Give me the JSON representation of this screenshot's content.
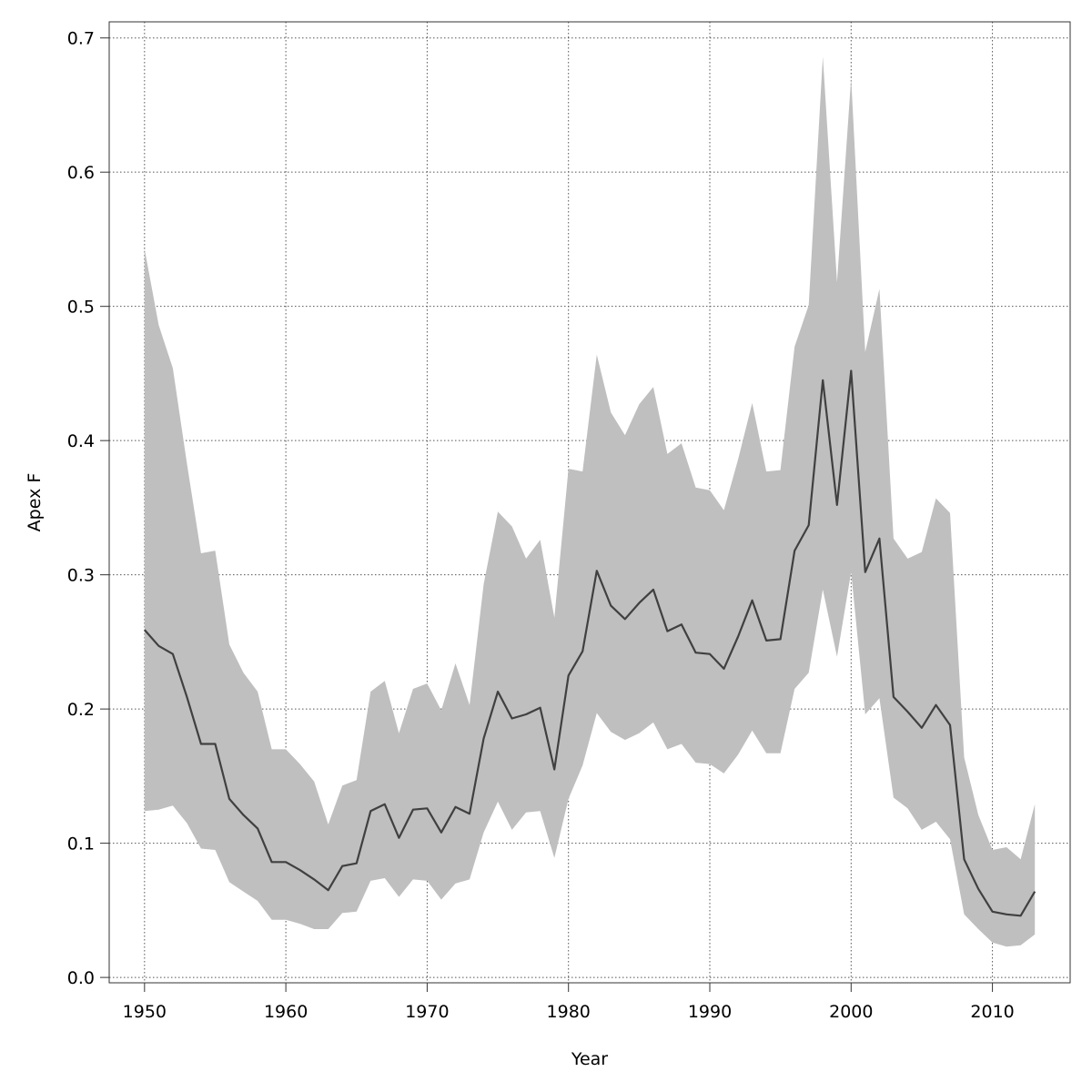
{
  "colors": {
    "band": "#bfbfbf",
    "line": "#404040",
    "grid": "#555555",
    "axis": "#333333"
  },
  "chart_data": {
    "type": "area",
    "title": "",
    "xlabel": "Year",
    "ylabel": "Apex F",
    "xlim": [
      1947.5,
      2015.5
    ],
    "ylim": [
      -0.004,
      0.712
    ],
    "xticks": [
      1950,
      1960,
      1970,
      1980,
      1990,
      2000,
      2010
    ],
    "yticks": [
      0.0,
      0.1,
      0.2,
      0.3,
      0.4,
      0.5,
      0.6,
      0.7
    ],
    "ytick_labels": [
      "0.0",
      "0.1",
      "0.2",
      "0.3",
      "0.4",
      "0.5",
      "0.6",
      "0.7"
    ],
    "grid": true,
    "x": [
      1950,
      1951,
      1952,
      1953,
      1954,
      1955,
      1956,
      1957,
      1958,
      1959,
      1960,
      1961,
      1962,
      1963,
      1964,
      1965,
      1966,
      1967,
      1968,
      1969,
      1970,
      1971,
      1972,
      1973,
      1974,
      1975,
      1976,
      1977,
      1978,
      1979,
      1980,
      1981,
      1982,
      1983,
      1984,
      1985,
      1986,
      1987,
      1988,
      1989,
      1990,
      1991,
      1992,
      1993,
      1994,
      1995,
      1996,
      1997,
      1998,
      1999,
      2000,
      2001,
      2002,
      2003,
      2004,
      2005,
      2006,
      2007,
      2008,
      2009,
      2010,
      2011,
      2012,
      2013
    ],
    "series": [
      {
        "values": [
          0.259,
          0.247,
          0.241,
          0.209,
          0.174,
          0.174,
          0.133,
          0.121,
          0.111,
          0.086,
          0.086,
          0.08,
          0.073,
          0.065,
          0.083,
          0.085,
          0.124,
          0.129,
          0.104,
          0.125,
          0.126,
          0.108,
          0.127,
          0.122,
          0.178,
          0.213,
          0.193,
          0.196,
          0.201,
          0.155,
          0.225,
          0.243,
          0.303,
          0.277,
          0.267,
          0.279,
          0.289,
          0.258,
          0.263,
          0.242,
          0.241,
          0.23,
          0.254,
          0.281,
          0.251,
          0.252,
          0.318,
          0.337,
          0.445,
          0.352,
          0.452,
          0.302,
          0.327,
          0.209,
          0.198,
          0.186,
          0.203,
          0.188,
          0.088,
          0.066,
          0.049,
          0.047,
          0.046,
          0.064
        ],
        "lower": [
          0.124,
          0.125,
          0.128,
          0.115,
          0.096,
          0.095,
          0.071,
          0.064,
          0.057,
          0.043,
          0.043,
          0.04,
          0.036,
          0.036,
          0.048,
          0.049,
          0.072,
          0.074,
          0.06,
          0.073,
          0.072,
          0.058,
          0.07,
          0.073,
          0.108,
          0.131,
          0.11,
          0.123,
          0.124,
          0.089,
          0.133,
          0.158,
          0.197,
          0.183,
          0.177,
          0.182,
          0.19,
          0.17,
          0.174,
          0.16,
          0.159,
          0.152,
          0.166,
          0.184,
          0.167,
          0.167,
          0.215,
          0.227,
          0.289,
          0.239,
          0.302,
          0.196,
          0.208,
          0.134,
          0.126,
          0.11,
          0.116,
          0.103,
          0.047,
          0.036,
          0.026,
          0.023,
          0.024,
          0.032
        ],
        "upper": [
          0.543,
          0.486,
          0.454,
          0.383,
          0.316,
          0.318,
          0.248,
          0.227,
          0.213,
          0.17,
          0.17,
          0.159,
          0.146,
          0.114,
          0.143,
          0.147,
          0.213,
          0.221,
          0.182,
          0.215,
          0.219,
          0.199,
          0.234,
          0.203,
          0.293,
          0.347,
          0.336,
          0.312,
          0.326,
          0.268,
          0.379,
          0.377,
          0.464,
          0.421,
          0.404,
          0.427,
          0.44,
          0.39,
          0.398,
          0.365,
          0.363,
          0.348,
          0.386,
          0.428,
          0.377,
          0.378,
          0.47,
          0.501,
          0.686,
          0.518,
          0.67,
          0.466,
          0.513,
          0.327,
          0.312,
          0.317,
          0.357,
          0.346,
          0.164,
          0.121,
          0.095,
          0.097,
          0.088,
          0.129
        ]
      }
    ]
  }
}
